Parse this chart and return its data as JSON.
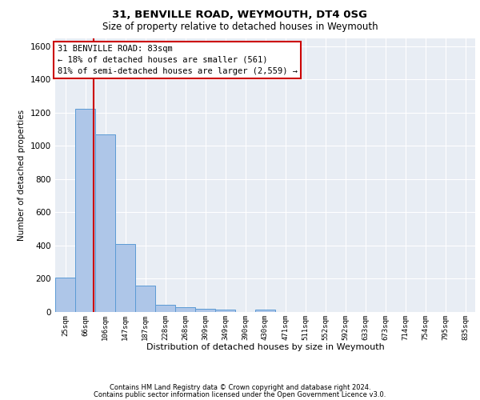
{
  "title1": "31, BENVILLE ROAD, WEYMOUTH, DT4 0SG",
  "title2": "Size of property relative to detached houses in Weymouth",
  "xlabel": "Distribution of detached houses by size in Weymouth",
  "ylabel": "Number of detached properties",
  "bin_labels": [
    "25sqm",
    "66sqm",
    "106sqm",
    "147sqm",
    "187sqm",
    "228sqm",
    "268sqm",
    "309sqm",
    "349sqm",
    "390sqm",
    "430sqm",
    "471sqm",
    "511sqm",
    "552sqm",
    "592sqm",
    "633sqm",
    "673sqm",
    "714sqm",
    "754sqm",
    "795sqm",
    "835sqm"
  ],
  "bar_heights": [
    205,
    1225,
    1070,
    410,
    160,
    45,
    27,
    20,
    15,
    0,
    14,
    0,
    0,
    0,
    0,
    0,
    0,
    0,
    0,
    0,
    0
  ],
  "bar_color": "#aec6e8",
  "bar_edge_color": "#5b9bd5",
  "background_color": "#e8edf4",
  "grid_color": "#ffffff",
  "ylim": [
    0,
    1650
  ],
  "yticks": [
    0,
    200,
    400,
    600,
    800,
    1000,
    1200,
    1400,
    1600
  ],
  "vline_color": "#cc0000",
  "annotation_text": "31 BENVILLE ROAD: 83sqm\n← 18% of detached houses are smaller (561)\n81% of semi-detached houses are larger (2,559) →",
  "annotation_box_color": "#ffffff",
  "annotation_box_edge": "#cc0000",
  "footnote1": "Contains HM Land Registry data © Crown copyright and database right 2024.",
  "footnote2": "Contains public sector information licensed under the Open Government Licence v3.0."
}
